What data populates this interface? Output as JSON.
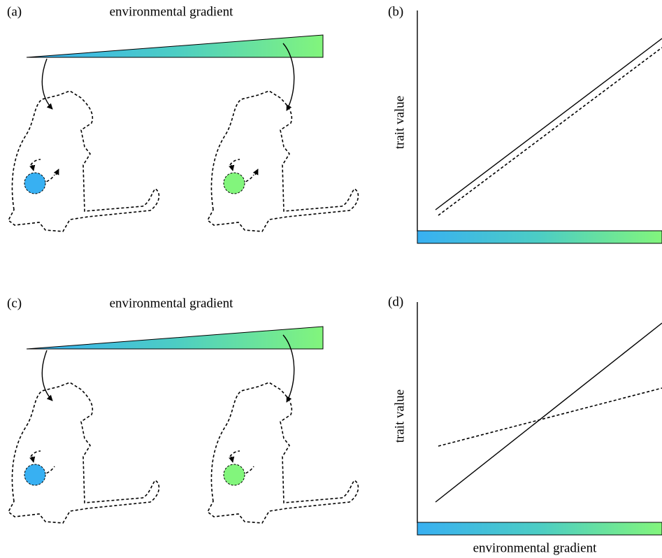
{
  "panels": [
    {
      "label": "(a)",
      "title": "environmental gradient"
    },
    {
      "label": "(b)",
      "y_axis_label": "trait value"
    },
    {
      "label": "(c)",
      "title": "environmental gradient"
    },
    {
      "label": "(d)",
      "y_axis_label": "trait value",
      "x_axis_label": "environmental gradient"
    }
  ]
}
